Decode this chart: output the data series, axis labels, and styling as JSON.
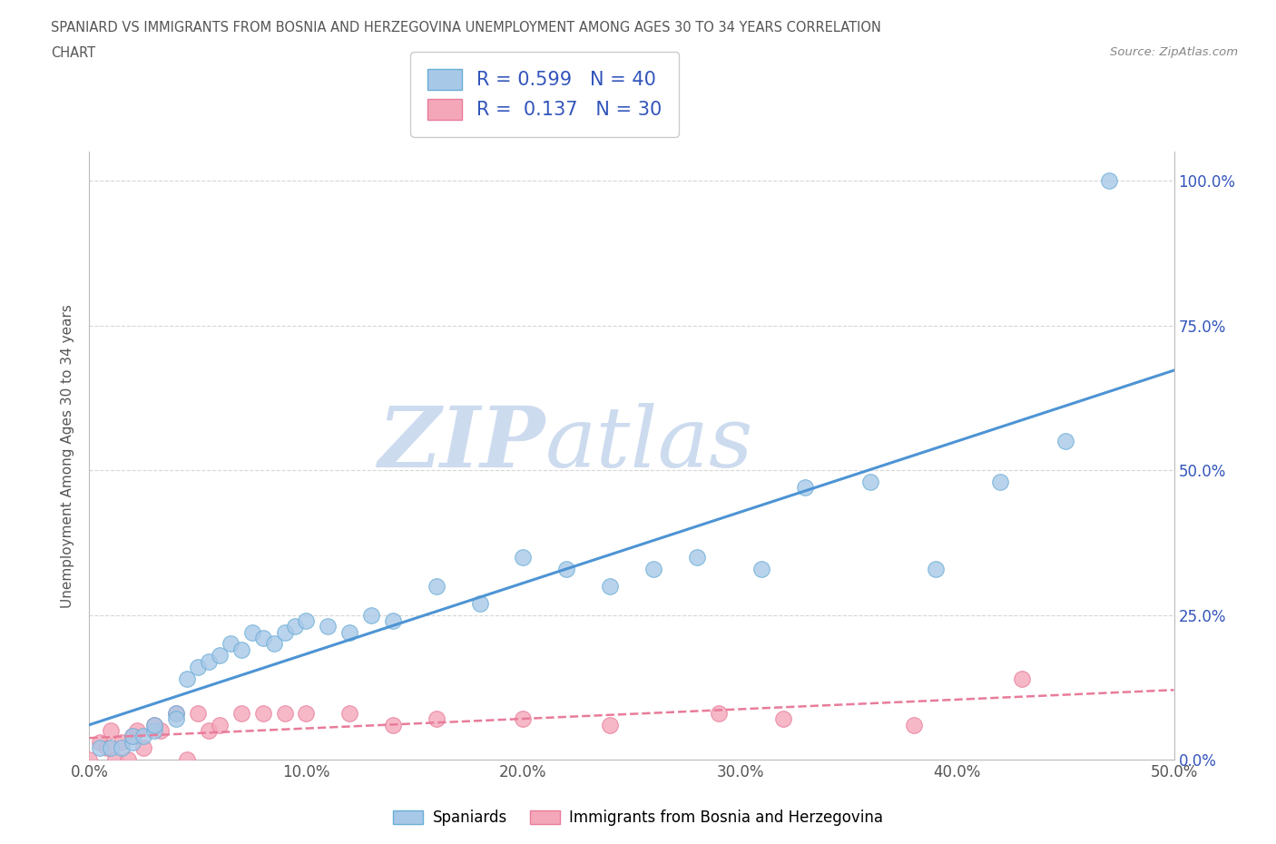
{
  "title_line1": "SPANIARD VS IMMIGRANTS FROM BOSNIA AND HERZEGOVINA UNEMPLOYMENT AMONG AGES 30 TO 34 YEARS CORRELATION",
  "title_line2": "CHART",
  "source": "Source: ZipAtlas.com",
  "ylabel": "Unemployment Among Ages 30 to 34 years",
  "xlim": [
    0.0,
    0.5
  ],
  "ylim": [
    0.0,
    1.05
  ],
  "yticks": [
    0.0,
    0.25,
    0.5,
    0.75,
    1.0
  ],
  "ytick_labels": [
    "0.0%",
    "25.0%",
    "50.0%",
    "75.0%",
    "100.0%"
  ],
  "xticks": [
    0.0,
    0.1,
    0.2,
    0.3,
    0.4,
    0.5
  ],
  "xtick_labels": [
    "0.0%",
    "10.0%",
    "20.0%",
    "30.0%",
    "40.0%",
    "50.0%"
  ],
  "spaniard_color": "#a8c8e8",
  "immigrant_color": "#f4a7b9",
  "spaniard_edge": "#6aaed6",
  "immigrant_edge": "#e87c9a",
  "trend_spaniard_color": "#4d94d4",
  "trend_immigrant_color": "#e87c9a",
  "R_spaniard": 0.599,
  "N_spaniard": 40,
  "R_immigrant": 0.137,
  "N_immigrant": 30,
  "legend_color": "#3355bb",
  "watermark_zip": "ZIP",
  "watermark_atlas": "atlas",
  "watermark_color": "#c8d8ee",
  "spaniard_x": [
    0.005,
    0.01,
    0.015,
    0.02,
    0.02,
    0.025,
    0.03,
    0.03,
    0.04,
    0.04,
    0.045,
    0.05,
    0.055,
    0.06,
    0.065,
    0.07,
    0.075,
    0.08,
    0.085,
    0.09,
    0.095,
    0.1,
    0.11,
    0.12,
    0.13,
    0.14,
    0.16,
    0.18,
    0.2,
    0.22,
    0.24,
    0.26,
    0.28,
    0.31,
    0.33,
    0.36,
    0.39,
    0.42,
    0.45,
    0.47
  ],
  "spaniard_y": [
    0.02,
    0.02,
    0.02,
    0.03,
    0.04,
    0.04,
    0.05,
    0.06,
    0.08,
    0.07,
    0.14,
    0.16,
    0.17,
    0.18,
    0.2,
    0.19,
    0.22,
    0.21,
    0.2,
    0.22,
    0.23,
    0.24,
    0.23,
    0.22,
    0.25,
    0.24,
    0.3,
    0.27,
    0.35,
    0.33,
    0.3,
    0.33,
    0.35,
    0.33,
    0.47,
    0.48,
    0.33,
    0.48,
    0.55,
    1.0
  ],
  "immigrant_x": [
    0.0,
    0.005,
    0.008,
    0.01,
    0.012,
    0.015,
    0.018,
    0.02,
    0.022,
    0.025,
    0.03,
    0.033,
    0.04,
    0.045,
    0.05,
    0.055,
    0.06,
    0.07,
    0.08,
    0.09,
    0.1,
    0.12,
    0.14,
    0.16,
    0.2,
    0.24,
    0.29,
    0.32,
    0.38,
    0.43
  ],
  "immigrant_y": [
    0.0,
    0.03,
    0.02,
    0.05,
    0.0,
    0.03,
    0.0,
    0.04,
    0.05,
    0.02,
    0.06,
    0.05,
    0.08,
    0.0,
    0.08,
    0.05,
    0.06,
    0.08,
    0.08,
    0.08,
    0.08,
    0.08,
    0.06,
    0.07,
    0.07,
    0.06,
    0.08,
    0.07,
    0.06,
    0.14
  ],
  "background_color": "#ffffff",
  "grid_color": "#cccccc",
  "legend_label_spaniard": "Spaniards",
  "legend_label_immigrant": "Immigrants from Bosnia and Herzegovina"
}
